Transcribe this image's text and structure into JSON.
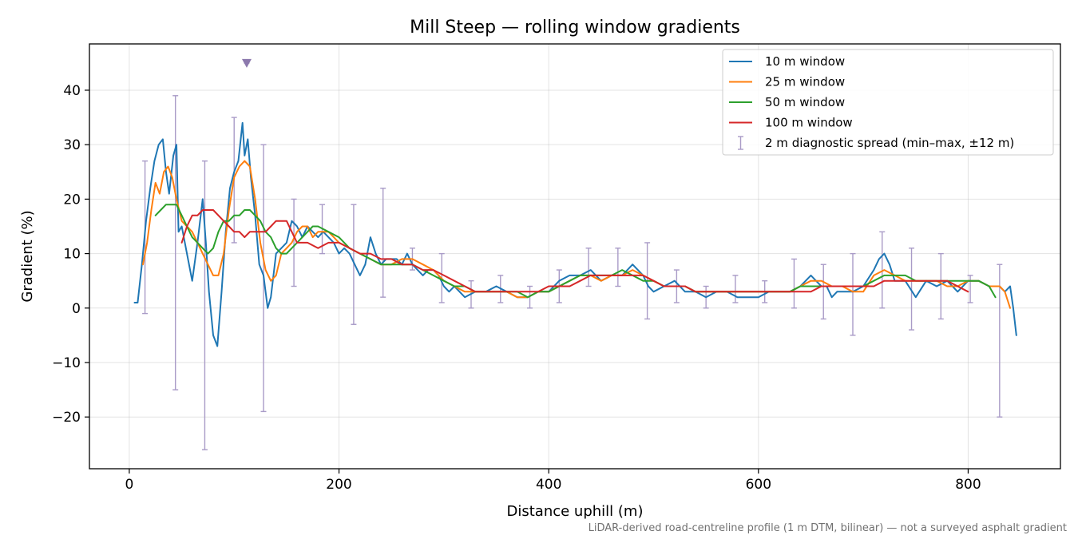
{
  "chart_data": {
    "type": "line",
    "title": "Mill Steep — rolling window gradients",
    "xlabel": "Distance uphill (m)",
    "ylabel": "Gradient (%)",
    "xlim": [
      -38,
      888
    ],
    "ylim": [
      -29.5,
      48.5
    ],
    "x_ticks": [
      0,
      200,
      400,
      600,
      800
    ],
    "y_ticks": [
      -20,
      -10,
      0,
      10,
      20,
      30,
      40
    ],
    "x_tick_labels": [
      "0",
      "200",
      "400",
      "600",
      "800"
    ],
    "y_tick_labels": [
      "−20",
      "−10",
      "0",
      "10",
      "20",
      "30",
      "40"
    ],
    "grid": true,
    "legend_position": "top-right",
    "footnote": "LiDAR-derived road-centreline profile (1 m DTM, bilinear) — not a surveyed asphalt gradient",
    "marker": {
      "x": 112,
      "y": 45,
      "shape": "down-triangle",
      "color": "#8c79ad"
    },
    "series": [
      {
        "name": "10 m window",
        "color": "#1f77b4",
        "x": [
          5,
          8,
          12,
          16,
          20,
          24,
          28,
          32,
          35,
          38,
          42,
          45,
          47,
          50,
          55,
          60,
          65,
          70,
          73,
          76,
          80,
          84,
          88,
          92,
          96,
          100,
          104,
          108,
          110,
          113,
          116,
          120,
          124,
          128,
          132,
          135,
          140,
          145,
          150,
          155,
          160,
          165,
          170,
          175,
          180,
          185,
          190,
          195,
          200,
          205,
          210,
          215,
          220,
          225,
          230,
          235,
          240,
          245,
          250,
          255,
          260,
          265,
          270,
          275,
          280,
          285,
          290,
          295,
          300,
          305,
          310,
          320,
          330,
          340,
          350,
          360,
          370,
          380,
          390,
          400,
          410,
          420,
          430,
          440,
          450,
          460,
          470,
          475,
          480,
          485,
          490,
          495,
          500,
          510,
          520,
          530,
          540,
          550,
          560,
          570,
          580,
          590,
          600,
          610,
          620,
          630,
          640,
          650,
          655,
          660,
          665,
          670,
          675,
          680,
          690,
          700,
          710,
          715,
          720,
          725,
          730,
          735,
          740,
          750,
          760,
          770,
          780,
          790,
          800,
          810,
          820,
          830,
          835,
          840,
          843,
          846
        ],
        "y": [
          1,
          1,
          8,
          16,
          22,
          27,
          30,
          31,
          25,
          21,
          28,
          30,
          14,
          15,
          10,
          5,
          12,
          20,
          12,
          3,
          -5,
          -7,
          3,
          14,
          22,
          25,
          27,
          34,
          28,
          31,
          24,
          17,
          8,
          6,
          0,
          2,
          10,
          11,
          12,
          16,
          15,
          13,
          15,
          14,
          13,
          14,
          13,
          12,
          10,
          11,
          10,
          8,
          6,
          8,
          13,
          10,
          8,
          9,
          9,
          9,
          8,
          10,
          8,
          7,
          6,
          7,
          7,
          6,
          4,
          3,
          4,
          2,
          3,
          3,
          4,
          3,
          2,
          2,
          3,
          3,
          5,
          6,
          6,
          7,
          5,
          6,
          6,
          7,
          8,
          7,
          6,
          4,
          3,
          4,
          5,
          3,
          3,
          2,
          3,
          3,
          2,
          2,
          2,
          3,
          3,
          3,
          4,
          6,
          5,
          4,
          4,
          2,
          3,
          3,
          3,
          4,
          7,
          9,
          10,
          8,
          5,
          5,
          5,
          2,
          5,
          4,
          5,
          3,
          5,
          5,
          4,
          4,
          3,
          4,
          0,
          -5
        ]
      },
      {
        "name": "25 m window",
        "color": "#ff7f0e",
        "x": [
          13,
          17,
          21,
          25,
          29,
          33,
          37,
          41,
          45,
          50,
          55,
          60,
          65,
          70,
          75,
          80,
          85,
          90,
          95,
          100,
          105,
          110,
          115,
          120,
          125,
          130,
          135,
          140,
          145,
          150,
          155,
          160,
          165,
          170,
          175,
          180,
          185,
          190,
          195,
          200,
          210,
          220,
          230,
          240,
          250,
          260,
          270,
          280,
          290,
          300,
          310,
          320,
          330,
          340,
          350,
          360,
          370,
          380,
          390,
          400,
          410,
          420,
          430,
          440,
          450,
          460,
          470,
          480,
          490,
          500,
          510,
          520,
          530,
          540,
          550,
          560,
          570,
          580,
          590,
          600,
          610,
          620,
          630,
          640,
          650,
          660,
          670,
          680,
          690,
          700,
          710,
          720,
          730,
          740,
          750,
          760,
          770,
          780,
          790,
          800,
          810,
          820,
          830,
          835,
          840
        ],
        "y": [
          8,
          12,
          18,
          23,
          21,
          25,
          26,
          24,
          20,
          16,
          15,
          14,
          12,
          10,
          8,
          6,
          6,
          10,
          18,
          24,
          26,
          27,
          26,
          20,
          12,
          7,
          5,
          6,
          10,
          11,
          12,
          14,
          15,
          15,
          13,
          14,
          14,
          14,
          13,
          12,
          11,
          10,
          9,
          8,
          8,
          9,
          9,
          8,
          7,
          5,
          4,
          3,
          3,
          3,
          3,
          3,
          2,
          2,
          3,
          3,
          4,
          5,
          6,
          6,
          5,
          6,
          6,
          7,
          6,
          5,
          4,
          4,
          4,
          3,
          3,
          3,
          3,
          3,
          3,
          3,
          3,
          3,
          3,
          4,
          5,
          5,
          4,
          4,
          3,
          3,
          6,
          7,
          6,
          5,
          5,
          5,
          5,
          4,
          4,
          5,
          5,
          4,
          4,
          3,
          0
        ]
      },
      {
        "name": "50 m window",
        "color": "#2ca02c",
        "x": [
          25,
          30,
          35,
          40,
          45,
          50,
          55,
          60,
          65,
          70,
          75,
          80,
          85,
          90,
          95,
          100,
          105,
          110,
          115,
          120,
          125,
          130,
          135,
          140,
          145,
          150,
          155,
          160,
          165,
          170,
          175,
          180,
          190,
          200,
          210,
          220,
          230,
          240,
          250,
          260,
          270,
          280,
          290,
          300,
          310,
          320,
          330,
          340,
          350,
          360,
          370,
          380,
          390,
          400,
          410,
          420,
          430,
          440,
          450,
          460,
          470,
          480,
          490,
          500,
          510,
          520,
          530,
          540,
          550,
          560,
          570,
          580,
          590,
          600,
          610,
          620,
          630,
          640,
          650,
          660,
          670,
          680,
          690,
          700,
          710,
          720,
          730,
          740,
          750,
          760,
          770,
          780,
          790,
          800,
          810,
          820,
          826
        ],
        "y": [
          17,
          18,
          19,
          19,
          19,
          17,
          15,
          13,
          12,
          11,
          10,
          11,
          14,
          16,
          16,
          17,
          17,
          18,
          18,
          17,
          16,
          14,
          13,
          11,
          10,
          10,
          11,
          12,
          13,
          14,
          15,
          15,
          14,
          13,
          11,
          10,
          9,
          8,
          8,
          8,
          8,
          7,
          6,
          5,
          4,
          4,
          3,
          3,
          3,
          3,
          3,
          2,
          3,
          3,
          4,
          5,
          6,
          6,
          6,
          6,
          7,
          6,
          5,
          5,
          4,
          4,
          4,
          3,
          3,
          3,
          3,
          3,
          3,
          3,
          3,
          3,
          3,
          4,
          4,
          4,
          4,
          4,
          4,
          4,
          5,
          6,
          6,
          6,
          5,
          5,
          5,
          5,
          5,
          5,
          5,
          4,
          2
        ]
      },
      {
        "name": "100 m window",
        "color": "#d62728",
        "x": [
          50,
          55,
          60,
          65,
          70,
          75,
          80,
          85,
          90,
          95,
          100,
          105,
          110,
          115,
          120,
          125,
          130,
          135,
          140,
          145,
          150,
          155,
          160,
          170,
          180,
          190,
          200,
          210,
          220,
          230,
          240,
          250,
          260,
          270,
          280,
          290,
          300,
          310,
          320,
          330,
          340,
          350,
          360,
          370,
          380,
          390,
          400,
          410,
          420,
          430,
          440,
          450,
          460,
          470,
          480,
          490,
          500,
          510,
          520,
          530,
          540,
          550,
          560,
          570,
          580,
          590,
          600,
          610,
          620,
          630,
          640,
          650,
          660,
          670,
          680,
          690,
          700,
          710,
          720,
          730,
          740,
          750,
          760,
          770,
          780,
          790,
          800
        ],
        "y": [
          12,
          15,
          17,
          17,
          18,
          18,
          18,
          17,
          16,
          15,
          14,
          14,
          13,
          14,
          14,
          14,
          14,
          15,
          16,
          16,
          16,
          14,
          12,
          12,
          11,
          12,
          12,
          11,
          10,
          10,
          9,
          9,
          8,
          8,
          7,
          7,
          6,
          5,
          4,
          3,
          3,
          3,
          3,
          3,
          3,
          3,
          4,
          4,
          4,
          5,
          6,
          6,
          6,
          6,
          6,
          6,
          5,
          4,
          4,
          4,
          3,
          3,
          3,
          3,
          3,
          3,
          3,
          3,
          3,
          3,
          3,
          3,
          4,
          4,
          4,
          4,
          4,
          4,
          5,
          5,
          5,
          5,
          5,
          5,
          5,
          4,
          3
        ]
      }
    ],
    "errorbars": {
      "name": "2 m diagnostic spread (min–max, ±12 m)",
      "color": "#a99bc7",
      "x": [
        15,
        44,
        72,
        100,
        112,
        128,
        157,
        184,
        214,
        242,
        270,
        298,
        326,
        354,
        382,
        410,
        438,
        466,
        494,
        522,
        550,
        578,
        606,
        634,
        662,
        690,
        718,
        746,
        774,
        802,
        830
      ],
      "low": [
        -1,
        -15,
        -26,
        12,
        45,
        -19,
        4,
        10,
        -3,
        2,
        7,
        1,
        0,
        1,
        0,
        1,
        4,
        4,
        -2,
        1,
        0,
        1,
        1,
        0,
        -2,
        -5,
        0,
        -4,
        -2,
        1,
        -20
      ],
      "high": [
        27,
        39,
        27,
        35,
        45,
        30,
        20,
        19,
        19,
        22,
        11,
        10,
        5,
        6,
        4,
        7,
        11,
        11,
        12,
        7,
        4,
        6,
        5,
        9,
        8,
        10,
        14,
        11,
        10,
        6,
        8
      ]
    }
  }
}
